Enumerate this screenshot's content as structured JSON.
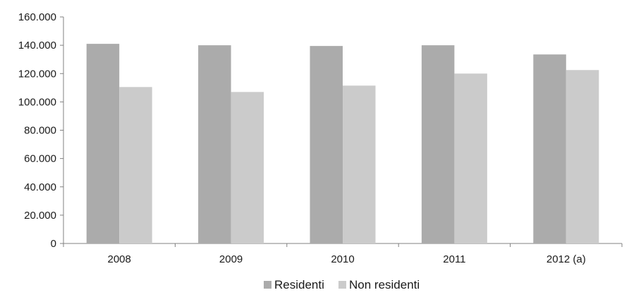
{
  "chart_data": {
    "type": "bar",
    "categories": [
      "2008",
      "2009",
      "2010",
      "2011",
      "2012 (a)"
    ],
    "series": [
      {
        "name": "Residenti",
        "values": [
          141000,
          140000,
          139500,
          140000,
          133500
        ],
        "color": "#ababab"
      },
      {
        "name": "Non residenti",
        "values": [
          110500,
          107000,
          111500,
          120000,
          122500
        ],
        "color": "#cbcbcb"
      }
    ],
    "ylim": [
      0,
      160000
    ],
    "yticks": [
      0,
      20000,
      40000,
      60000,
      80000,
      100000,
      120000,
      140000,
      160000
    ],
    "ytick_labels": [
      "0",
      "20.000",
      "40.000",
      "60.000",
      "80.000",
      "100.000",
      "120.000",
      "140.000",
      "160.000"
    ],
    "grid": false,
    "legend_position": "bottom-center",
    "title": "",
    "xlabel": "",
    "ylabel": ""
  }
}
